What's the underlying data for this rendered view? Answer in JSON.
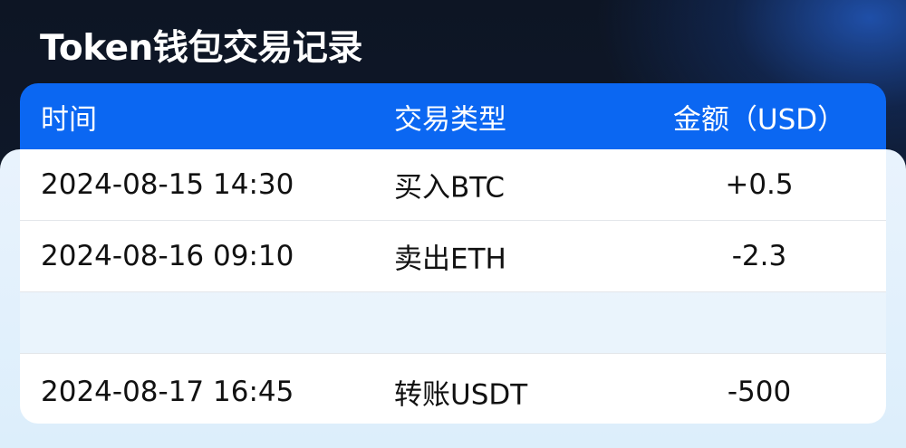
{
  "title": "Token钱包交易记录",
  "table": {
    "headers": [
      "时间",
      "交易类型",
      "金额（USD）"
    ],
    "rows": [
      {
        "time": "2024-08-15 14:30",
        "type": "买入BTC",
        "amount": "+0.5"
      },
      {
        "time": "2024-08-16 09:10",
        "type": "卖出ETH",
        "amount": "-2.3"
      },
      {
        "time": "",
        "type": "",
        "amount": ""
      },
      {
        "time": "2024-08-17 16:45",
        "type": "转账USDT",
        "amount": "-500"
      }
    ]
  },
  "colors": {
    "header_bg": "#0b67f2",
    "title_text": "#ffffff"
  }
}
